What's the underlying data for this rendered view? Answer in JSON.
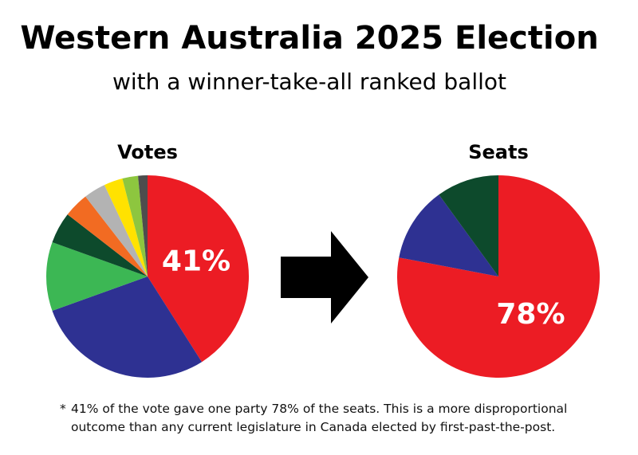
{
  "title": "Western Australia 2025 Election",
  "subtitle": "with a winner-take-all ranked ballot",
  "chart_data": [
    {
      "type": "pie",
      "title": "Votes",
      "values": [
        41,
        28.5,
        11,
        5,
        4,
        3.5,
        3,
        2.5,
        1.5
      ],
      "value_labels": [
        "41%",
        null,
        null,
        null,
        null,
        null,
        null,
        null,
        null
      ],
      "colors": [
        "#ec1c24",
        "#2e3192",
        "#3cb754",
        "#0d4a2c",
        "#f26b22",
        "#b3b3b3",
        "#ffe200",
        "#8dc63f",
        "#4d4d4d"
      ]
    },
    {
      "type": "pie",
      "title": "Seats",
      "values": [
        78,
        12,
        10
      ],
      "value_labels": [
        "78%",
        null,
        null
      ],
      "colors": [
        "#ec1c24",
        "#2e3192",
        "#0d4a2c"
      ]
    }
  ],
  "footnote": "41% of the vote gave one party 78% of the seats. This is a more disproportional outcome than any current legislature in Canada elected by first-past-the-post."
}
